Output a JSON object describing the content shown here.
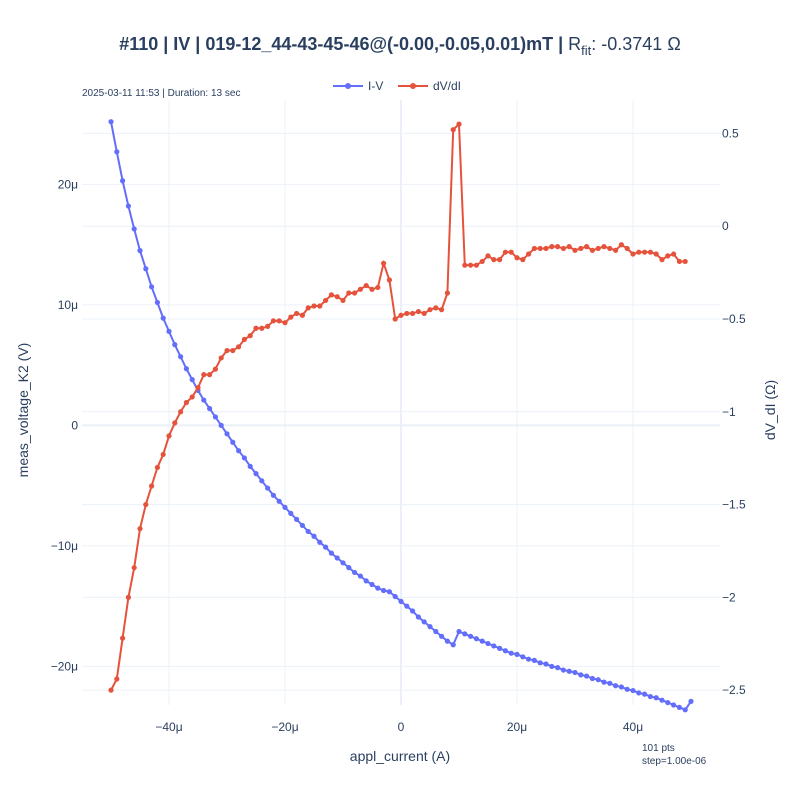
{
  "title": {
    "main": "#110 | IV | 019-12_44-43-45-46@(-0.00,-0.05,0.01)mT | ",
    "rfit_prefix": "R",
    "rfit_sub": "fit",
    "rfit_value": ": -0.3741 Ω"
  },
  "annotations": {
    "top_left": "2025-03-11 11:53 | Duration: 13 sec",
    "bottom_right_line1": "101 pts",
    "bottom_right_line2": "step=1.00e-06"
  },
  "colors": {
    "iv": "#636efa",
    "dvdi": "#e5533c",
    "grid": "#ebf0f8",
    "zero": "#ebf0f8"
  },
  "chart_data": {
    "type": "line",
    "xlabel": "appl_current (A)",
    "ylabel": "meas_voltage_K2 (V)",
    "y2label": "dV_dI (Ω)",
    "xlim": [
      -5.5e-05,
      5.5e-05
    ],
    "ylim": [
      -2.32e-05,
      2.7e-05
    ],
    "y2lim": [
      -2.58,
      0.68
    ],
    "x_ticks": [
      {
        "v": -4e-05,
        "label": "−40μ"
      },
      {
        "v": -2e-05,
        "label": "−20μ"
      },
      {
        "v": 0,
        "label": "0"
      },
      {
        "v": 2e-05,
        "label": "20μ"
      },
      {
        "v": 4e-05,
        "label": "40μ"
      }
    ],
    "y_ticks": [
      {
        "v": -2e-05,
        "label": "−20μ"
      },
      {
        "v": -1e-05,
        "label": "−10μ"
      },
      {
        "v": 0,
        "label": "0"
      },
      {
        "v": 1e-05,
        "label": "10μ"
      },
      {
        "v": 2e-05,
        "label": "20μ"
      }
    ],
    "y2_ticks": [
      {
        "v": -2.5,
        "label": "−2.5"
      },
      {
        "v": -2,
        "label": "−2"
      },
      {
        "v": -1.5,
        "label": "−1.5"
      },
      {
        "v": -1,
        "label": "−1"
      },
      {
        "v": -0.5,
        "label": "−0.5"
      },
      {
        "v": 0,
        "label": "0"
      },
      {
        "v": 0.5,
        "label": "0.5"
      }
    ],
    "legend_position": "top-center",
    "series": [
      {
        "name": "I-V",
        "axis": "y",
        "color": "#636efa",
        "points": [
          [
            -5e-05,
            2.52e-05
          ],
          [
            -4.9e-05,
            2.27e-05
          ],
          [
            -4.8e-05,
            2.03e-05
          ],
          [
            -4.7e-05,
            1.82e-05
          ],
          [
            -4.6e-05,
            1.63e-05
          ],
          [
            -4.5e-05,
            1.45e-05
          ],
          [
            -4.4e-05,
            1.3e-05
          ],
          [
            -4.3e-05,
            1.15e-05
          ],
          [
            -4.2e-05,
            1.02e-05
          ],
          [
            -4.1e-05,
            8.9e-06
          ],
          [
            -4e-05,
            7.8e-06
          ],
          [
            -3.9e-05,
            6.7e-06
          ],
          [
            -3.8e-05,
            5.7e-06
          ],
          [
            -3.7e-05,
            4.7e-06
          ],
          [
            -3.6e-05,
            3.8e-06
          ],
          [
            -3.5e-05,
            2.9e-06
          ],
          [
            -3.4e-05,
            2.1e-06
          ],
          [
            -3.3e-05,
            1.4e-06
          ],
          [
            -3.2e-05,
            7e-07
          ],
          [
            -3.1e-05,
            0.0
          ],
          [
            -3e-05,
            -7e-07
          ],
          [
            -2.9e-05,
            -1.4e-06
          ],
          [
            -2.8e-05,
            -2.1e-06
          ],
          [
            -2.7e-05,
            -2.7e-06
          ],
          [
            -2.6e-05,
            -3.4e-06
          ],
          [
            -2.5e-05,
            -4e-06
          ],
          [
            -2.4e-05,
            -4.6e-06
          ],
          [
            -2.3e-05,
            -5.2e-06
          ],
          [
            -2.2e-05,
            -5.8e-06
          ],
          [
            -2.1e-05,
            -6.3e-06
          ],
          [
            -2e-05,
            -6.8e-06
          ],
          [
            -1.9e-05,
            -7.3e-06
          ],
          [
            -1.8e-05,
            -7.8e-06
          ],
          [
            -1.7e-05,
            -8.3e-06
          ],
          [
            -1.6e-05,
            -8.8e-06
          ],
          [
            -1.5e-05,
            -9.2e-06
          ],
          [
            -1.4e-05,
            -9.7e-06
          ],
          [
            -1.3e-05,
            -1.01e-05
          ],
          [
            -1.2e-05,
            -1.06e-05
          ],
          [
            -1.1e-05,
            -1.1e-05
          ],
          [
            -1e-05,
            -1.14e-05
          ],
          [
            -9e-06,
            -1.18e-05
          ],
          [
            -8e-06,
            -1.22e-05
          ],
          [
            -7e-06,
            -1.25e-05
          ],
          [
            -6e-06,
            -1.29e-05
          ],
          [
            -5e-06,
            -1.32e-05
          ],
          [
            -4e-06,
            -1.35e-05
          ],
          [
            -3e-06,
            -1.37e-05
          ],
          [
            -2e-06,
            -1.38e-05
          ],
          [
            -1e-06,
            -1.42e-05
          ],
          [
            0,
            -1.46e-05
          ],
          [
            1e-06,
            -1.5e-05
          ],
          [
            2e-06,
            -1.54e-05
          ],
          [
            3e-06,
            -1.59e-05
          ],
          [
            4e-06,
            -1.63e-05
          ],
          [
            5e-06,
            -1.67e-05
          ],
          [
            6e-06,
            -1.71e-05
          ],
          [
            7e-06,
            -1.75e-05
          ],
          [
            8e-06,
            -1.79e-05
          ],
          [
            9e-06,
            -1.82e-05
          ],
          [
            1e-05,
            -1.71e-05
          ],
          [
            1.1e-05,
            -1.73e-05
          ],
          [
            1.2e-05,
            -1.75e-05
          ],
          [
            1.3e-05,
            -1.77e-05
          ],
          [
            1.4e-05,
            -1.79e-05
          ],
          [
            1.5e-05,
            -1.81e-05
          ],
          [
            1.6e-05,
            -1.83e-05
          ],
          [
            1.7e-05,
            -1.85e-05
          ],
          [
            1.8e-05,
            -1.87e-05
          ],
          [
            1.9e-05,
            -1.89e-05
          ],
          [
            2e-05,
            -1.9e-05
          ],
          [
            2.1e-05,
            -1.92e-05
          ],
          [
            2.2e-05,
            -1.94e-05
          ],
          [
            2.3e-05,
            -1.95e-05
          ],
          [
            2.4e-05,
            -1.97e-05
          ],
          [
            2.5e-05,
            -1.98e-05
          ],
          [
            2.6e-05,
            -2e-05
          ],
          [
            2.7e-05,
            -2.01e-05
          ],
          [
            2.8e-05,
            -2.03e-05
          ],
          [
            2.9e-05,
            -2.04e-05
          ],
          [
            3e-05,
            -2.05e-05
          ],
          [
            3.1e-05,
            -2.07e-05
          ],
          [
            3.2e-05,
            -2.08e-05
          ],
          [
            3.3e-05,
            -2.1e-05
          ],
          [
            3.4e-05,
            -2.11e-05
          ],
          [
            3.5e-05,
            -2.13e-05
          ],
          [
            3.6e-05,
            -2.14e-05
          ],
          [
            3.7e-05,
            -2.16e-05
          ],
          [
            3.8e-05,
            -2.17e-05
          ],
          [
            3.9e-05,
            -2.19e-05
          ],
          [
            4e-05,
            -2.2e-05
          ],
          [
            4.1e-05,
            -2.22e-05
          ],
          [
            4.2e-05,
            -2.23e-05
          ],
          [
            4.3e-05,
            -2.25e-05
          ],
          [
            4.4e-05,
            -2.26e-05
          ],
          [
            4.5e-05,
            -2.28e-05
          ],
          [
            4.6e-05,
            -2.3e-05
          ],
          [
            4.7e-05,
            -2.32e-05
          ],
          [
            4.8e-05,
            -2.34e-05
          ],
          [
            4.9e-05,
            -2.36e-05
          ],
          [
            5e-05,
            -2.29e-05
          ]
        ]
      },
      {
        "name": "dV/dI",
        "axis": "y2",
        "color": "#e5533c",
        "points": [
          [
            -5e-05,
            -2.5
          ],
          [
            -4.9e-05,
            -2.44
          ],
          [
            -4.8e-05,
            -2.22
          ],
          [
            -4.7e-05,
            -2.0
          ],
          [
            -4.6e-05,
            -1.84
          ],
          [
            -4.5e-05,
            -1.63
          ],
          [
            -4.4e-05,
            -1.5
          ],
          [
            -4.3e-05,
            -1.4
          ],
          [
            -4.2e-05,
            -1.3
          ],
          [
            -4.1e-05,
            -1.23
          ],
          [
            -4e-05,
            -1.13
          ],
          [
            -3.9e-05,
            -1.06
          ],
          [
            -3.8e-05,
            -1.0
          ],
          [
            -3.7e-05,
            -0.95
          ],
          [
            -3.6e-05,
            -0.92
          ],
          [
            -3.5e-05,
            -0.87
          ],
          [
            -3.4e-05,
            -0.8
          ],
          [
            -3.3e-05,
            -0.8
          ],
          [
            -3.2e-05,
            -0.77
          ],
          [
            -3.1e-05,
            -0.71
          ],
          [
            -3e-05,
            -0.67
          ],
          [
            -2.9e-05,
            -0.67
          ],
          [
            -2.8e-05,
            -0.65
          ],
          [
            -2.7e-05,
            -0.61
          ],
          [
            -2.6e-05,
            -0.59
          ],
          [
            -2.5e-05,
            -0.55
          ],
          [
            -2.4e-05,
            -0.55
          ],
          [
            -2.3e-05,
            -0.54
          ],
          [
            -2.2e-05,
            -0.51
          ],
          [
            -2.1e-05,
            -0.51
          ],
          [
            -2e-05,
            -0.52
          ],
          [
            -1.9e-05,
            -0.49
          ],
          [
            -1.8e-05,
            -0.47
          ],
          [
            -1.7e-05,
            -0.48
          ],
          [
            -1.6e-05,
            -0.44
          ],
          [
            -1.5e-05,
            -0.43
          ],
          [
            -1.4e-05,
            -0.43
          ],
          [
            -1.3e-05,
            -0.4
          ],
          [
            -1.2e-05,
            -0.37
          ],
          [
            -1.1e-05,
            -0.38
          ],
          [
            -1e-05,
            -0.4
          ],
          [
            -9e-06,
            -0.36
          ],
          [
            -8e-06,
            -0.36
          ],
          [
            -7e-06,
            -0.34
          ],
          [
            -6e-06,
            -0.32
          ],
          [
            -5e-06,
            -0.34
          ],
          [
            -4e-06,
            -0.33
          ],
          [
            -3e-06,
            -0.2
          ],
          [
            -2e-06,
            -0.29
          ],
          [
            -1e-06,
            -0.5
          ],
          [
            0,
            -0.48
          ],
          [
            1e-06,
            -0.47
          ],
          [
            2e-06,
            -0.47
          ],
          [
            3e-06,
            -0.46
          ],
          [
            4e-06,
            -0.47
          ],
          [
            5e-06,
            -0.45
          ],
          [
            6e-06,
            -0.44
          ],
          [
            7e-06,
            -0.45
          ],
          [
            8e-06,
            -0.36
          ],
          [
            9e-06,
            0.52
          ],
          [
            1e-05,
            0.55
          ],
          [
            1.1e-05,
            -0.21
          ],
          [
            1.2e-05,
            -0.21
          ],
          [
            1.3e-05,
            -0.21
          ],
          [
            1.4e-05,
            -0.19
          ],
          [
            1.5e-05,
            -0.16
          ],
          [
            1.6e-05,
            -0.18
          ],
          [
            1.7e-05,
            -0.18
          ],
          [
            1.8e-05,
            -0.14
          ],
          [
            1.9e-05,
            -0.14
          ],
          [
            2e-05,
            -0.17
          ],
          [
            2.1e-05,
            -0.18
          ],
          [
            2.2e-05,
            -0.15
          ],
          [
            2.3e-05,
            -0.12
          ],
          [
            2.4e-05,
            -0.12
          ],
          [
            2.5e-05,
            -0.12
          ],
          [
            2.6e-05,
            -0.11
          ],
          [
            2.7e-05,
            -0.11
          ],
          [
            2.8e-05,
            -0.12
          ],
          [
            2.9e-05,
            -0.11
          ],
          [
            3e-05,
            -0.13
          ],
          [
            3.1e-05,
            -0.12
          ],
          [
            3.2e-05,
            -0.11
          ],
          [
            3.3e-05,
            -0.13
          ],
          [
            3.4e-05,
            -0.12
          ],
          [
            3.5e-05,
            -0.11
          ],
          [
            3.6e-05,
            -0.12
          ],
          [
            3.7e-05,
            -0.13
          ],
          [
            3.8e-05,
            -0.1
          ],
          [
            3.9e-05,
            -0.12
          ],
          [
            4e-05,
            -0.15
          ],
          [
            4.1e-05,
            -0.14
          ],
          [
            4.2e-05,
            -0.14
          ],
          [
            4.3e-05,
            -0.14
          ],
          [
            4.4e-05,
            -0.15
          ],
          [
            4.5e-05,
            -0.18
          ],
          [
            4.6e-05,
            -0.16
          ],
          [
            4.7e-05,
            -0.15
          ],
          [
            4.8e-05,
            -0.19
          ],
          [
            4.9e-05,
            -0.19
          ]
        ]
      }
    ]
  }
}
